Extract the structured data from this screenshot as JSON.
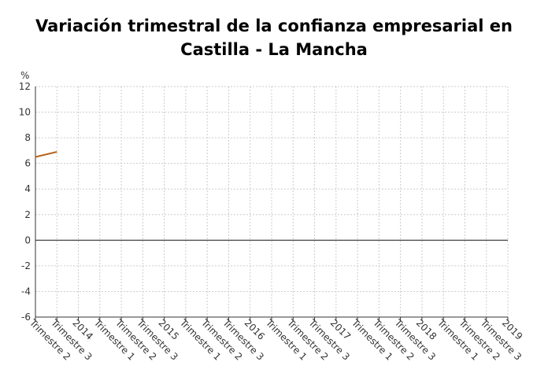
{
  "chart_data": {
    "type": "line",
    "title": "Variación trimestral de la confianza empresarial en Castilla - La Mancha",
    "y_label": "%",
    "categories": [
      "Trimestre 2",
      "Trimestre 3",
      "2014",
      "Trimestre 1",
      "Trimestre 2",
      "Trimestre 3",
      "2015",
      "Trimestre 1",
      "Trimestre 2",
      "Trimestre 3",
      "2016",
      "Trimestre 1",
      "Trimestre 2",
      "Trimestre 3",
      "2017",
      "Trimestre 1",
      "Trimestre 2",
      "Trimestre 3",
      "2018",
      "Trimestre 1",
      "Trimestre 2",
      "Trimestre 3",
      "2019"
    ],
    "series": [
      {
        "name": "Castilla - La Mancha",
        "color": "#b8651f",
        "values": [
          6.5,
          6.9,
          null,
          null,
          null,
          null,
          null,
          null,
          null,
          null,
          null,
          null,
          null,
          null,
          null,
          null,
          null,
          null,
          null,
          null,
          null,
          null,
          null
        ]
      }
    ],
    "ylim": [
      -6,
      12
    ],
    "yticks": [
      -6,
      -4,
      -2,
      0,
      2,
      4,
      6,
      8,
      10,
      12
    ],
    "grid": true
  }
}
